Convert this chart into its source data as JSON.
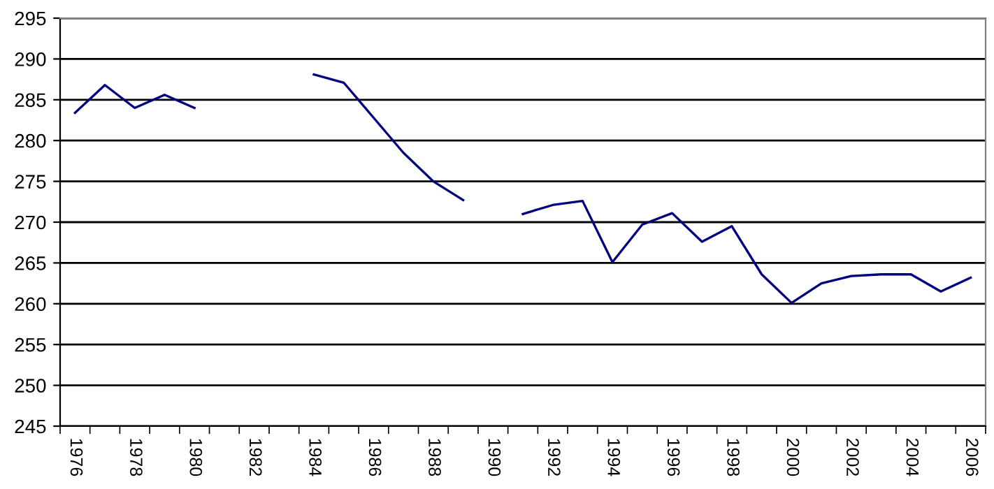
{
  "chart_data": {
    "type": "line",
    "categories": [
      "1976",
      null,
      "1978",
      null,
      "1980",
      null,
      "1982",
      null,
      "1984",
      null,
      "1986",
      null,
      "1988",
      null,
      "1990",
      null,
      "1992",
      null,
      "1994",
      null,
      "1996",
      null,
      "1998",
      null,
      "2000",
      null,
      "2002",
      null,
      "2004",
      null,
      "2006"
    ],
    "series": [
      {
        "color": "#000080",
        "values": [
          283.4,
          286.8,
          284.0,
          285.6,
          284.0,
          null,
          null,
          null,
          288.1,
          287.1,
          282.8,
          278.5,
          275.0,
          272.7,
          null,
          271.0,
          272.1,
          272.6,
          265.1,
          269.7,
          271.1,
          267.6,
          269.5,
          263.6,
          260.1,
          262.5,
          263.4,
          263.6,
          263.6,
          261.5,
          263.2
        ]
      }
    ],
    "ylim": [
      245,
      295
    ],
    "yticks": [
      245,
      250,
      255,
      260,
      265,
      270,
      275,
      280,
      285,
      290,
      295
    ],
    "grid": "y",
    "marker": "none",
    "line_style": "solid"
  }
}
